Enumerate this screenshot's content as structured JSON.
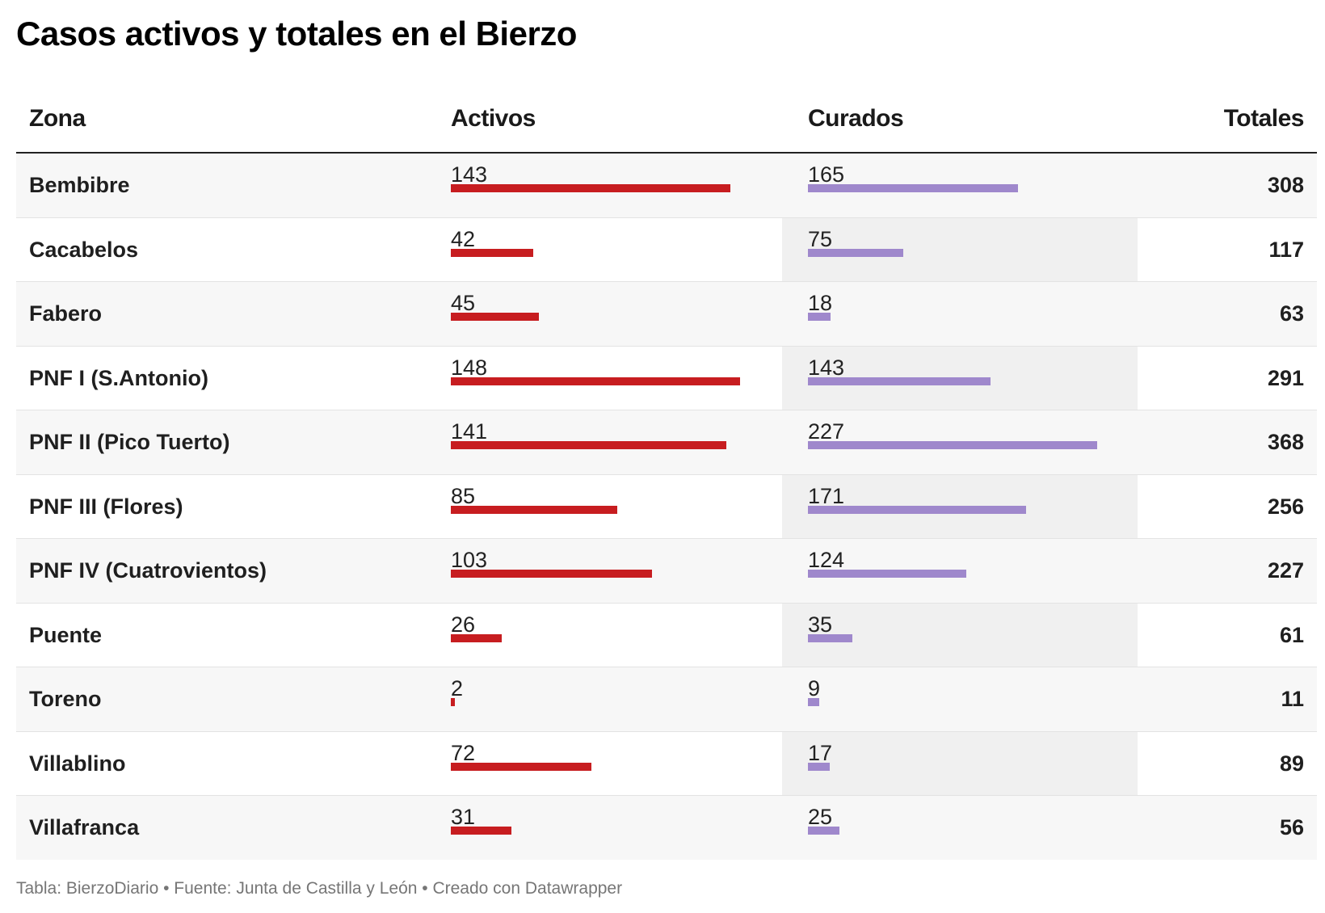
{
  "title": "Casos activos y totales en el Bierzo",
  "headers": {
    "zona": "Zona",
    "activos": "Activos",
    "curados": "Curados",
    "totales": "Totales"
  },
  "colors": {
    "activos_bar": "#c71d20",
    "curados_bar": "#9f88cc",
    "curados_column_bg": "#f0f0f0"
  },
  "footer": "Tabla: BierzoDiario • Fuente: Junta de Castilla y León • Creado con Datawrapper",
  "chart_data": {
    "type": "table",
    "title": "Casos activos y totales en el Bierzo",
    "columns": [
      "Zona",
      "Activos",
      "Curados",
      "Totales"
    ],
    "rows": [
      {
        "zona": "Bembibre",
        "activos": 143,
        "curados": 165,
        "totales": 308
      },
      {
        "zona": "Cacabelos",
        "activos": 42,
        "curados": 75,
        "totales": 117
      },
      {
        "zona": "Fabero",
        "activos": 45,
        "curados": 18,
        "totales": 63
      },
      {
        "zona": "PNF I (S.Antonio)",
        "activos": 148,
        "curados": 143,
        "totales": 291
      },
      {
        "zona": "PNF II (Pico Tuerto)",
        "activos": 141,
        "curados": 227,
        "totales": 368
      },
      {
        "zona": "PNF III (Flores)",
        "activos": 85,
        "curados": 171,
        "totales": 256
      },
      {
        "zona": "PNF IV (Cuatrovientos)",
        "activos": 103,
        "curados": 124,
        "totales": 227
      },
      {
        "zona": "Puente",
        "activos": 26,
        "curados": 35,
        "totales": 61
      },
      {
        "zona": "Toreno",
        "activos": 2,
        "curados": 9,
        "totales": 11
      },
      {
        "zona": "Villablino",
        "activos": 72,
        "curados": 17,
        "totales": 89
      },
      {
        "zona": "Villafranca",
        "activos": 31,
        "curados": 25,
        "totales": 56
      }
    ]
  }
}
